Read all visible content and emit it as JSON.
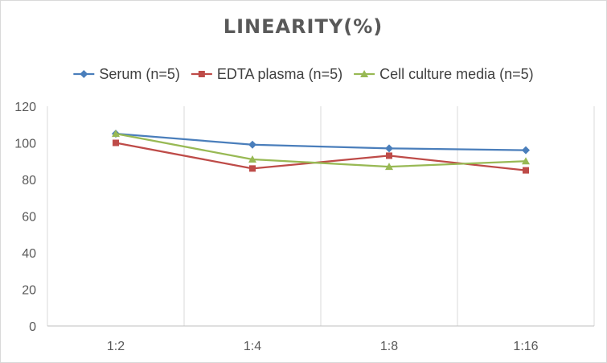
{
  "chart_data": {
    "type": "line",
    "title": "LINEARITY(%)",
    "xlabel": "",
    "ylabel": "",
    "categories": [
      "1:2",
      "1:4",
      "1:8",
      "1:16"
    ],
    "ylim": [
      0,
      120
    ],
    "yticks": [
      0,
      20,
      40,
      60,
      80,
      100,
      120
    ],
    "grid": "vertical",
    "legend": "top",
    "series": [
      {
        "name": "Serum (n=5)",
        "color": "#4a7ebb",
        "marker": "diamond",
        "values": [
          105,
          99,
          97,
          96
        ]
      },
      {
        "name": "EDTA plasma (n=5)",
        "color": "#be4b48",
        "marker": "square",
        "values": [
          100,
          86,
          93,
          85
        ]
      },
      {
        "name": "Cell culture media (n=5)",
        "color": "#98b954",
        "marker": "triangle",
        "values": [
          105,
          91,
          87,
          90
        ]
      }
    ]
  }
}
